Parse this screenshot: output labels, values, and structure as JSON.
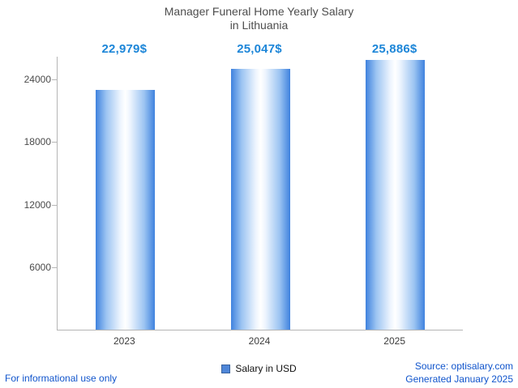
{
  "title": {
    "line1": "Manager Funeral Home Yearly Salary",
    "line2": "in Lithuania"
  },
  "chart_data": {
    "type": "bar",
    "title": "Manager Funeral Home Yearly Salary in Lithuania",
    "categories": [
      "2023",
      "2024",
      "2025"
    ],
    "values": [
      22979,
      25047,
      25886
    ],
    "value_labels": [
      "22,979$",
      "25,047$",
      "25,886$"
    ],
    "xlabel": "",
    "ylabel": "",
    "yticks": [
      6000,
      12000,
      18000,
      24000
    ],
    "ylim": [
      0,
      26200
    ],
    "grid": false,
    "legend": [
      "Salary in USD"
    ],
    "legend_position": "bottom",
    "bar_color": "#3f82de"
  },
  "legend": {
    "label": "Salary in USD",
    "swatch_color": "#4e86d8"
  },
  "footer": {
    "left": "For informational use only",
    "source": "Source: optisalary.com",
    "generated": "Generated January 2025"
  },
  "colors": {
    "value_label": "#1d86d8",
    "footer_link": "#1155cc",
    "axis": "#b5b5b5",
    "tick_text": "#4a4a4a",
    "title_text": "#4d4d4d"
  }
}
